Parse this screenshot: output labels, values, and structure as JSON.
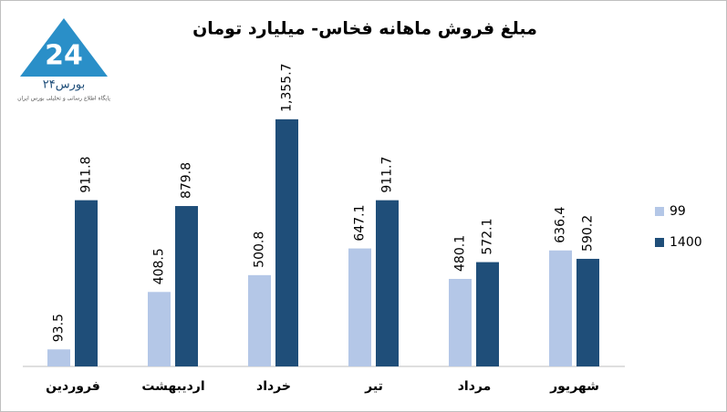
{
  "logo": {
    "text": "بورس۲۴",
    "tagline": "پایگاه اطلاع رسانی و تحلیلی بورس ایران"
  },
  "chart_data": {
    "type": "bar",
    "title": "مبلغ فروش ماهانه فخاس- میلیارد تومان",
    "categories": [
      "فروردین",
      "اردیبهشت",
      "خرداد",
      "تیر",
      "مرداد",
      "شهریور"
    ],
    "series": [
      {
        "name": "99",
        "color": "#b4c7e7",
        "values": [
          93.5,
          408.5,
          500.8,
          647.1,
          480.1,
          636.4
        ]
      },
      {
        "name": "1400",
        "color": "#1f4e79",
        "values": [
          911.8,
          879.8,
          1355.7,
          911.7,
          572.1,
          590.2
        ],
        "value_labels": [
          "911.8",
          "879.8",
          "1,355.7",
          "911.7",
          "572.1",
          "590.2"
        ]
      }
    ],
    "ylim": [
      0,
      1600
    ],
    "legend": "right"
  }
}
